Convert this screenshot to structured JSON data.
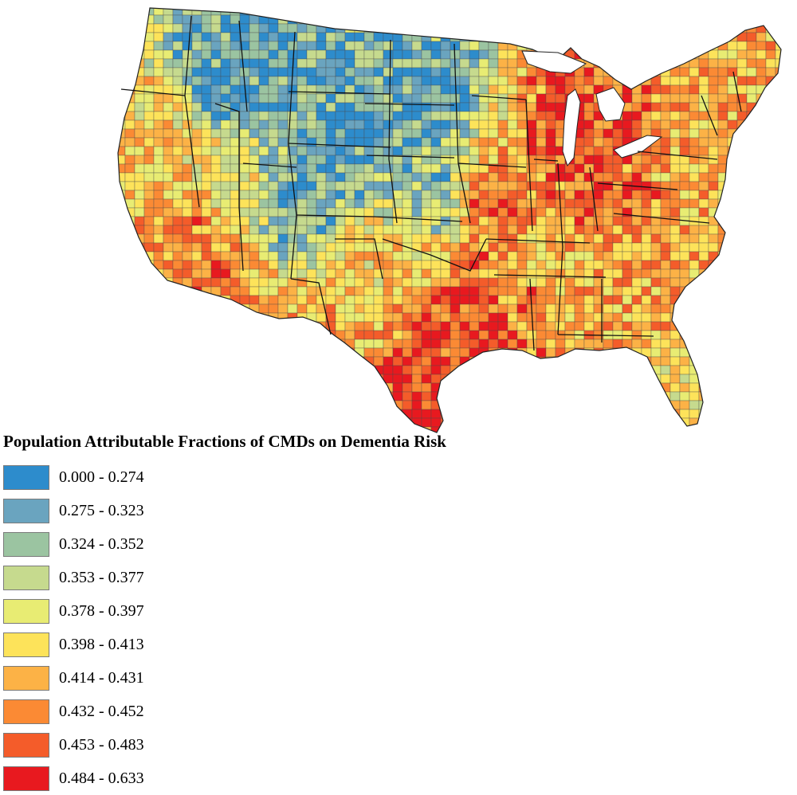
{
  "legend": {
    "title": "Population Attributable Fractions of CMDs on Dementia Risk",
    "classes": [
      {
        "label": "0.000 - 0.274",
        "color": "#2d8ccc"
      },
      {
        "label": "0.275 - 0.323",
        "color": "#6aa4bf"
      },
      {
        "label": "0.324 - 0.352",
        "color": "#9bc4a1"
      },
      {
        "label": "0.353 - 0.377",
        "color": "#c6da8e"
      },
      {
        "label": "0.378 - 0.397",
        "color": "#e8ec73"
      },
      {
        "label": "0.398 - 0.413",
        "color": "#fde35a"
      },
      {
        "label": "0.414 - 0.431",
        "color": "#fcb246"
      },
      {
        "label": "0.432 - 0.452",
        "color": "#fb8a34"
      },
      {
        "label": "0.453 - 0.483",
        "color": "#f45c2a"
      },
      {
        "label": "0.484 - 0.633",
        "color": "#e8191f"
      }
    ]
  },
  "map": {
    "region": "United States (conterminous)",
    "unit": "county",
    "boundary_color": "#333333",
    "water_color": "#ffffff"
  }
}
